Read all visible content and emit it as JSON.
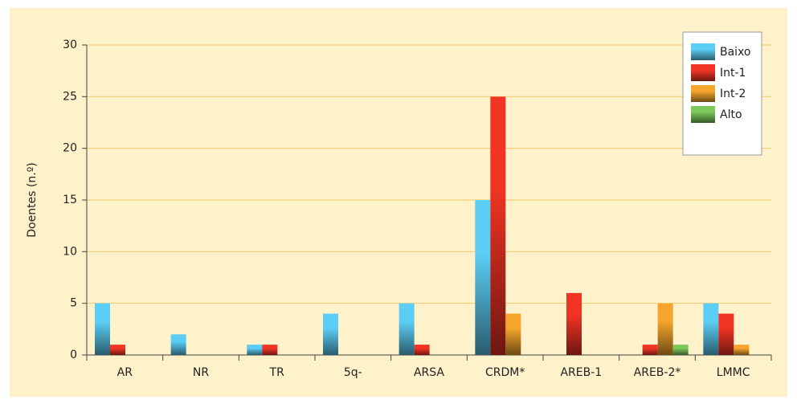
{
  "chart_data": {
    "type": "bar",
    "ylabel": "Doentes (n.º)",
    "categories": [
      "AR",
      "NR",
      "TR",
      "5q-",
      "ARSA",
      "CRDM*",
      "AREB-1",
      "AREB-2*",
      "LMMC"
    ],
    "series": [
      {
        "name": "Baixo",
        "color": "#5ccdf5",
        "values": [
          5,
          2,
          1,
          4,
          5,
          15,
          0,
          0,
          5
        ]
      },
      {
        "name": "Int-1",
        "color": "#f23424",
        "values": [
          1,
          0,
          1,
          0,
          1,
          25,
          6,
          1,
          4
        ]
      },
      {
        "name": "Int-2",
        "color": "#f5a52c",
        "values": [
          0,
          0,
          0,
          0,
          0,
          4,
          0,
          5,
          1
        ]
      },
      {
        "name": "Alto",
        "color": "#7cc85a",
        "values": [
          0,
          0,
          0,
          0,
          0,
          0,
          0,
          1,
          0
        ]
      }
    ],
    "ylim": [
      0,
      30
    ],
    "yticks": [
      0,
      5,
      10,
      15,
      20,
      25,
      30
    ],
    "grid": true,
    "legend": "upper right"
  }
}
